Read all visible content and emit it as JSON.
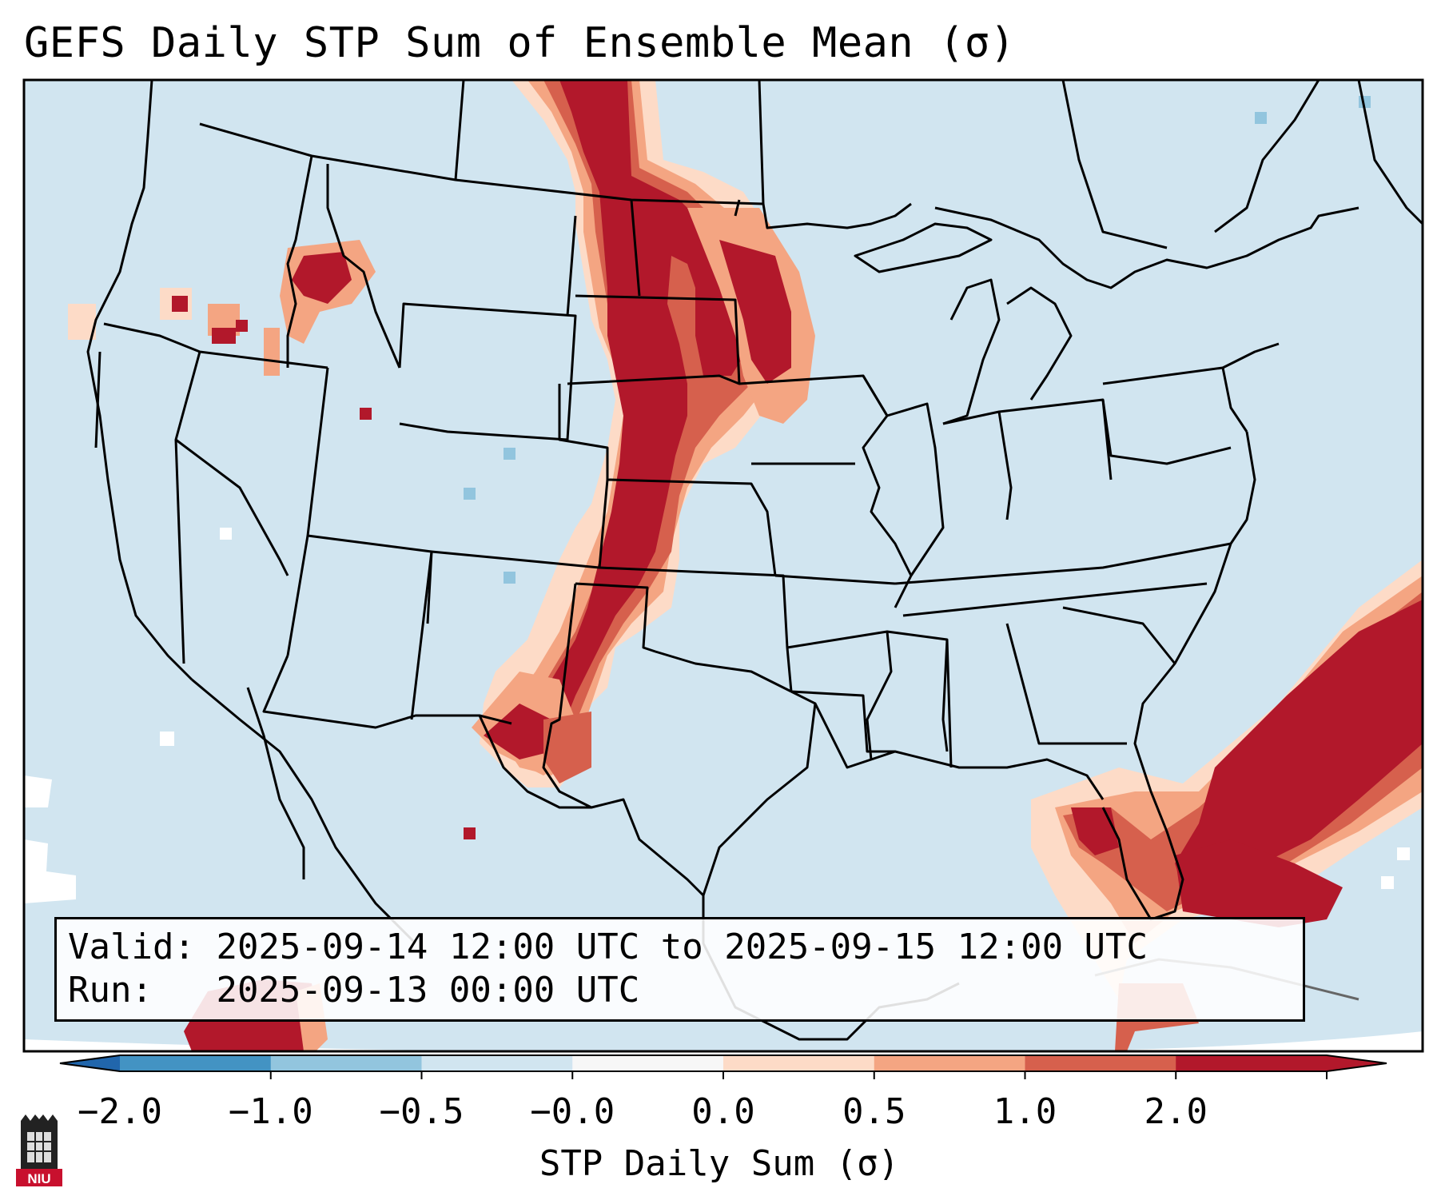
{
  "title": "GEFS Daily STP Sum of Ensemble Mean (σ)",
  "info": {
    "valid_label": "Valid:",
    "valid_value": "2025-09-14 12:00 UTC to 2025-09-15 12:00 UTC",
    "run_label": "Run:",
    "run_value": "2025-09-13 00:00 UTC"
  },
  "colorbar": {
    "title": "STP Daily Sum (σ)",
    "ticks": [
      "−2.0",
      "−1.0",
      "−0.5",
      "−0.0",
      "0.0",
      "0.5",
      "1.0",
      "2.0"
    ],
    "colors": [
      "#4393c3",
      "#92c5de",
      "#d1e5f0",
      "#f7f7f7",
      "#fddbc7",
      "#f4a582",
      "#d6604d",
      "#b2182b"
    ],
    "under_color": "#2166ac",
    "over_color": "#b2182b"
  },
  "map": {
    "background_color": "#d1e5f0",
    "outside_color": "#ffffff",
    "region": "Contiguous United States"
  },
  "logo_text": "NIU",
  "logo_alt": "Northern Illinois University logo",
  "map_alt": "Map of the contiguous United States with state borders and shaded STP anomaly regions"
}
